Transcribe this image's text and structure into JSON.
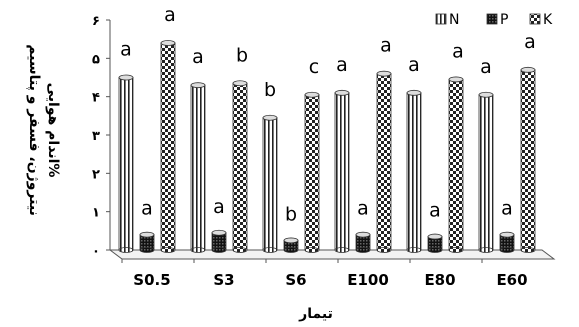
{
  "chart_data": {
    "type": "bar",
    "style": "3d-clustered-column",
    "title": "",
    "xlabel": "تیمار",
    "ylabel_lines": [
      "نیتروژن، فسفر و پتاسیم",
      "اندام هوایی%"
    ],
    "ylim": [
      0,
      6
    ],
    "ytick_labels": [
      "۰",
      "۱",
      "۲",
      "۳",
      "۴",
      "۵",
      "۶"
    ],
    "categories": [
      "S0.5",
      "S3",
      "S6",
      "E100",
      "E80",
      "E60"
    ],
    "legend_position": "top-right",
    "series": [
      {
        "name": "N",
        "pattern": "vertical-stripes",
        "values": [
          4.5,
          4.3,
          3.45,
          4.1,
          4.1,
          4.05
        ],
        "labels": [
          "a",
          "a",
          "b",
          "a",
          "a",
          "a"
        ]
      },
      {
        "name": "P",
        "pattern": "dark-checker",
        "values": [
          0.4,
          0.45,
          0.25,
          0.4,
          0.35,
          0.4
        ],
        "labels": [
          "a",
          "a",
          "b",
          "a",
          "a",
          "a"
        ]
      },
      {
        "name": "K",
        "pattern": "checkerboard",
        "values": [
          5.4,
          4.35,
          4.05,
          4.6,
          4.45,
          4.7
        ],
        "labels": [
          "a",
          "b",
          "c",
          "a",
          "a",
          "a"
        ]
      }
    ]
  }
}
